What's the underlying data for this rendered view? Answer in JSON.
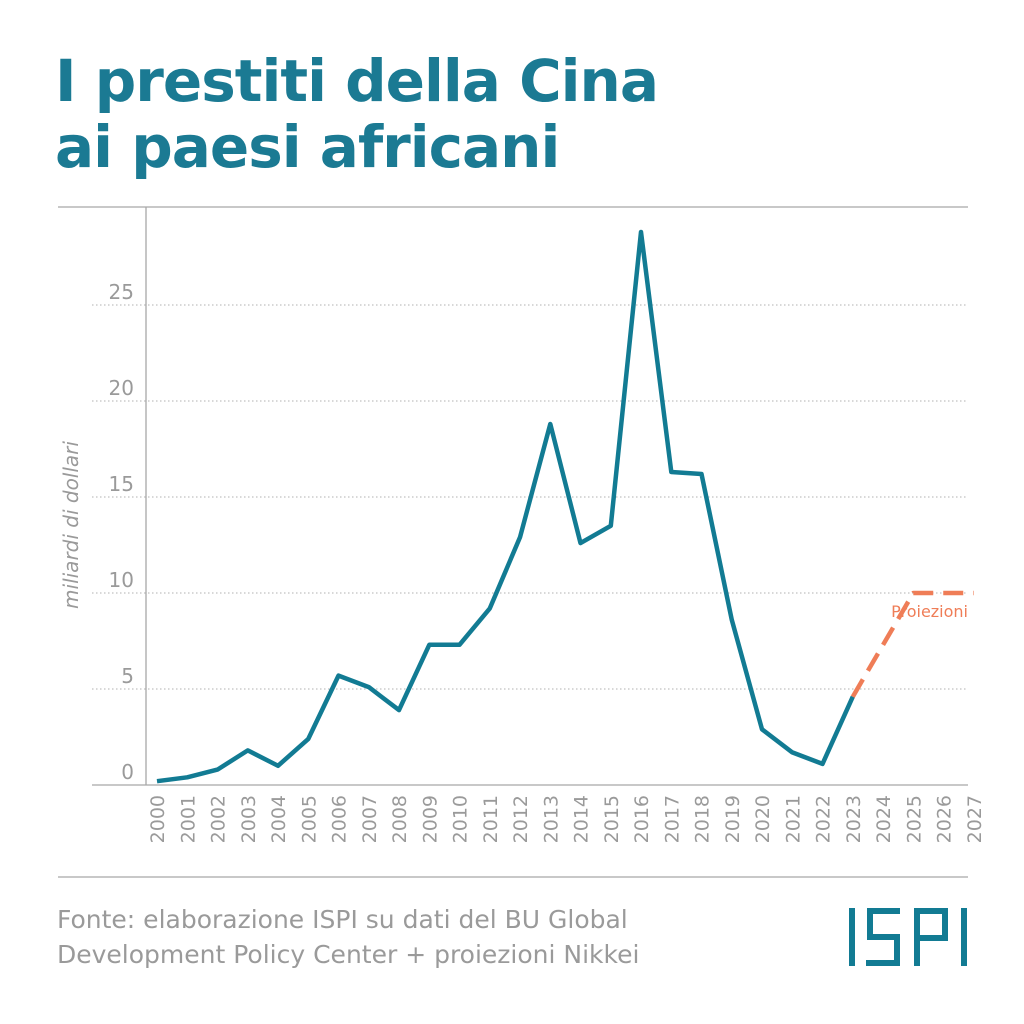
{
  "title": {
    "line1": "I prestiti della Cina",
    "line2": "ai paesi africani"
  },
  "chart_data": {
    "type": "line",
    "ylabel": "miliardi di dollari",
    "xlabel": "",
    "ylim": [
      0,
      30
    ],
    "yticks": [
      0,
      5,
      10,
      15,
      20,
      25
    ],
    "xticks": [
      "2000",
      "2001",
      "2002",
      "2003",
      "2004",
      "2005",
      "2006",
      "2007",
      "2008",
      "2009",
      "2010",
      "2011",
      "2012",
      "2013",
      "2014",
      "2015",
      "2016",
      "2017",
      "2018",
      "2019",
      "2020",
      "2021",
      "2022",
      "2023",
      "2024",
      "2025",
      "2026",
      "2027"
    ],
    "grid": "horizontal dotted",
    "series": [
      {
        "name": "",
        "style": "solid",
        "color": "#127b93",
        "points": [
          {
            "x": "2000",
            "y": 0.2
          },
          {
            "x": "2001",
            "y": 0.4
          },
          {
            "x": "2002",
            "y": 0.8
          },
          {
            "x": "2003",
            "y": 1.8
          },
          {
            "x": "2004",
            "y": 1.0
          },
          {
            "x": "2005",
            "y": 2.4
          },
          {
            "x": "2006",
            "y": 5.7
          },
          {
            "x": "2007",
            "y": 5.1
          },
          {
            "x": "2008",
            "y": 3.9
          },
          {
            "x": "2009",
            "y": 7.3
          },
          {
            "x": "2010",
            "y": 7.3
          },
          {
            "x": "2011",
            "y": 9.2
          },
          {
            "x": "2012",
            "y": 12.9
          },
          {
            "x": "2013",
            "y": 18.8
          },
          {
            "x": "2014",
            "y": 12.6
          },
          {
            "x": "2015",
            "y": 13.5
          },
          {
            "x": "2016",
            "y": 28.8
          },
          {
            "x": "2017",
            "y": 16.3
          },
          {
            "x": "2018",
            "y": 16.2
          },
          {
            "x": "2019",
            "y": 8.6
          },
          {
            "x": "2020",
            "y": 2.9
          },
          {
            "x": "2021",
            "y": 1.7
          },
          {
            "x": "2022",
            "y": 1.1
          },
          {
            "x": "2023",
            "y": 4.6
          }
        ]
      },
      {
        "name": "Proiezioni",
        "style": "dashed",
        "color": "#ef7d57",
        "points": [
          {
            "x": "2023",
            "y": 4.6
          },
          {
            "x": "2025",
            "y": 10.0
          },
          {
            "x": "2027",
            "y": 10.0
          }
        ]
      }
    ]
  },
  "footer": {
    "line1": "Fonte: elaborazione ISPI su dati del BU Global",
    "line2": "Development Policy Center + proiezioni Nikkei"
  },
  "logo": {
    "text": "ISPI",
    "color": "#127b93"
  },
  "colors": {
    "title": "#1b7a93",
    "line": "#127b93",
    "projection": "#ef7d57",
    "grid": "#b0b0b0",
    "text_muted": "#9a9a9a"
  }
}
